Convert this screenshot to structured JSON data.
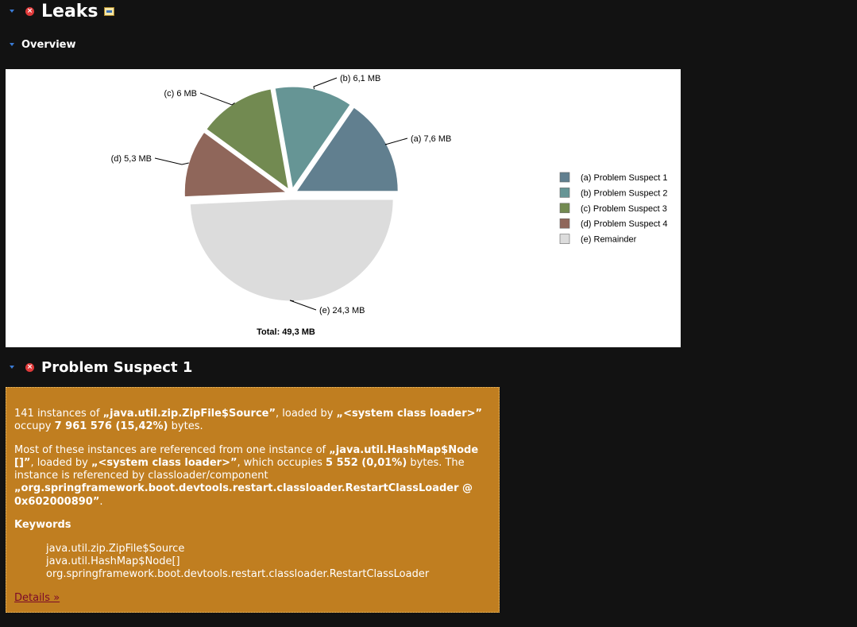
{
  "header": {
    "title": "Leaks",
    "icons": [
      "collapse-arrow",
      "error-icon",
      "query-icon"
    ]
  },
  "overview": {
    "title": "Overview"
  },
  "chart_data": {
    "type": "pie",
    "title": "",
    "total_label": "Total: 49,3 MB",
    "slices": [
      {
        "label": "(a)  7,6 MB",
        "value": 7.6,
        "color": "#617f8f",
        "legend": "(a)  Problem Suspect 1"
      },
      {
        "label": "(b)  6,1 MB",
        "value": 6.1,
        "color": "#669595",
        "legend": "(b)  Problem Suspect 2"
      },
      {
        "label": "(c)  6 MB",
        "value": 6.0,
        "color": "#728a51",
        "legend": "(c)  Problem Suspect 3"
      },
      {
        "label": "(d)  5,3 MB",
        "value": 5.3,
        "color": "#8f665a",
        "legend": "(d)  Problem Suspect 4"
      },
      {
        "label": "(e)  24,3 MB",
        "value": 24.3,
        "color": "#dcdcdc",
        "legend": "(e)  Remainder"
      }
    ],
    "legend_position": "right"
  },
  "suspect": {
    "title": "Problem Suspect 1",
    "p1": {
      "a": "141 instances of ",
      "b": "„java.util.zip.ZipFile$Source”",
      "c": ", loaded by ",
      "d": "„<system class loader>”",
      "e": " occupy ",
      "f": "7 961 576 (15,42%)",
      "g": " bytes."
    },
    "p2": {
      "a": "Most of these instances are referenced from one instance of ",
      "b": "„java.util.HashMap$Node []”",
      "c": ", loaded by ",
      "d": "„<system class loader>”",
      "e": ", which occupies ",
      "f": "5 552 (0,01%)",
      "g": " bytes. The instance is referenced by classloader/component ",
      "h": "„org.springframework.boot.devtools.restart.classloader.RestartClassLoader @ 0x602000890”",
      "i": "."
    },
    "keywords_label": "Keywords",
    "keywords": [
      "java.util.zip.ZipFile$Source",
      "java.util.HashMap$Node[]",
      "org.springframework.boot.devtools.restart.classloader.RestartClassLoader"
    ],
    "details_link": "Details »"
  }
}
